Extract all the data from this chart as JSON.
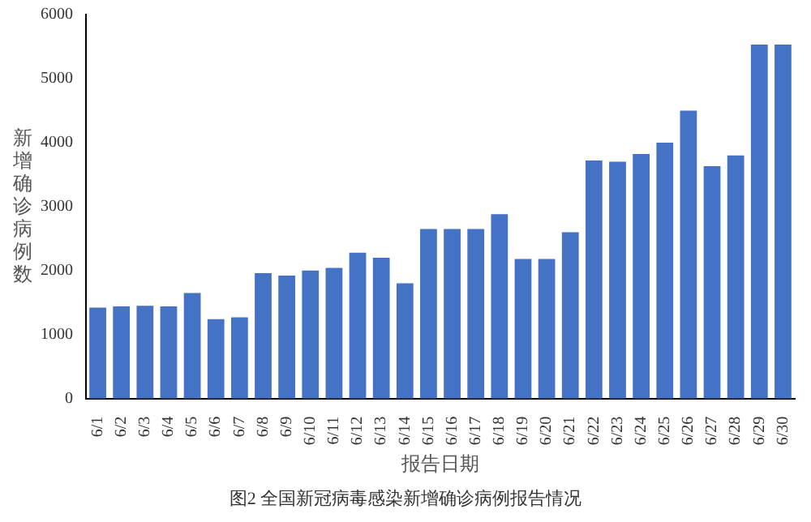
{
  "chart_data": {
    "type": "bar",
    "xlabel": "报告日期",
    "ylabel": "新增确诊病例数",
    "categories": [
      "6/1",
      "6/2",
      "6/3",
      "6/4",
      "6/5",
      "6/6",
      "6/7",
      "6/8",
      "6/9",
      "6/10",
      "6/11",
      "6/12",
      "6/13",
      "6/14",
      "6/15",
      "6/16",
      "6/17",
      "6/18",
      "6/19",
      "6/20",
      "6/21",
      "6/22",
      "6/23",
      "6/24",
      "6/25",
      "6/26",
      "6/27",
      "6/28",
      "6/29",
      "6/30"
    ],
    "values": [
      1420,
      1440,
      1450,
      1440,
      1650,
      1240,
      1270,
      1960,
      1920,
      2000,
      2040,
      2280,
      2200,
      1800,
      2650,
      2650,
      2650,
      2880,
      2180,
      2180,
      2600,
      3720,
      3700,
      3820,
      4000,
      4500,
      3630,
      3800,
      5530,
      5530
    ],
    "color": "#4472c4",
    "ylim": [
      0,
      6000
    ],
    "yticks": [
      0,
      1000,
      2000,
      3000,
      4000,
      5000,
      6000
    ],
    "grid": false,
    "legend": false,
    "annotations": [
      "图2 全国新冠病毒感染新增确诊病例报告情况"
    ]
  }
}
